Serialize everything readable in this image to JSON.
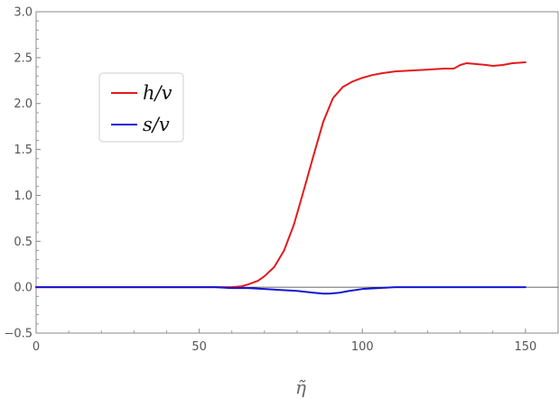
{
  "chart_data": {
    "type": "line",
    "title": "",
    "xlabel": "η̃",
    "ylabel": "",
    "xlim": [
      0,
      160
    ],
    "ylim": [
      -0.5,
      3.0
    ],
    "x_ticks": [
      0,
      50,
      100,
      150
    ],
    "x_tick_labels": [
      "0",
      "50",
      "100",
      "150"
    ],
    "y_ticks": [
      -0.5,
      0.0,
      0.5,
      1.0,
      1.5,
      2.0,
      2.5,
      3.0
    ],
    "y_tick_labels": [
      "−0.5",
      "0.0",
      "0.5",
      "1.0",
      "1.5",
      "2.0",
      "2.5",
      "3.0"
    ],
    "legend_position": "upper-left",
    "zero_line": true,
    "series": [
      {
        "name": "h/v",
        "color": "#e31a1c",
        "x": [
          0,
          10,
          20,
          30,
          40,
          50,
          55,
          60,
          63,
          65,
          68,
          70,
          73,
          76,
          79,
          82,
          85,
          88,
          91,
          94,
          97,
          100,
          103,
          106,
          110,
          115,
          120,
          125,
          128,
          130,
          132,
          135,
          138,
          140,
          143,
          146,
          150
        ],
        "y": [
          0.0,
          0.0,
          0.0,
          0.0,
          0.0,
          0.0,
          0.0,
          0.0,
          0.01,
          0.03,
          0.07,
          0.12,
          0.22,
          0.4,
          0.68,
          1.05,
          1.43,
          1.8,
          2.06,
          2.18,
          2.24,
          2.28,
          2.31,
          2.33,
          2.35,
          2.36,
          2.37,
          2.38,
          2.38,
          2.42,
          2.44,
          2.43,
          2.42,
          2.41,
          2.42,
          2.44,
          2.45
        ]
      },
      {
        "name": "s/v",
        "color": "#1515d4",
        "x": [
          0,
          10,
          20,
          30,
          40,
          50,
          55,
          60,
          65,
          70,
          75,
          80,
          85,
          88,
          90,
          93,
          96,
          100,
          105,
          110,
          120,
          130,
          140,
          150
        ],
        "y": [
          0.0,
          0.0,
          0.0,
          0.0,
          0.0,
          0.0,
          0.0,
          -0.01,
          -0.01,
          -0.02,
          -0.03,
          -0.04,
          -0.06,
          -0.07,
          -0.07,
          -0.06,
          -0.04,
          -0.02,
          -0.01,
          0.0,
          0.0,
          0.0,
          0.0,
          0.0
        ]
      }
    ]
  }
}
